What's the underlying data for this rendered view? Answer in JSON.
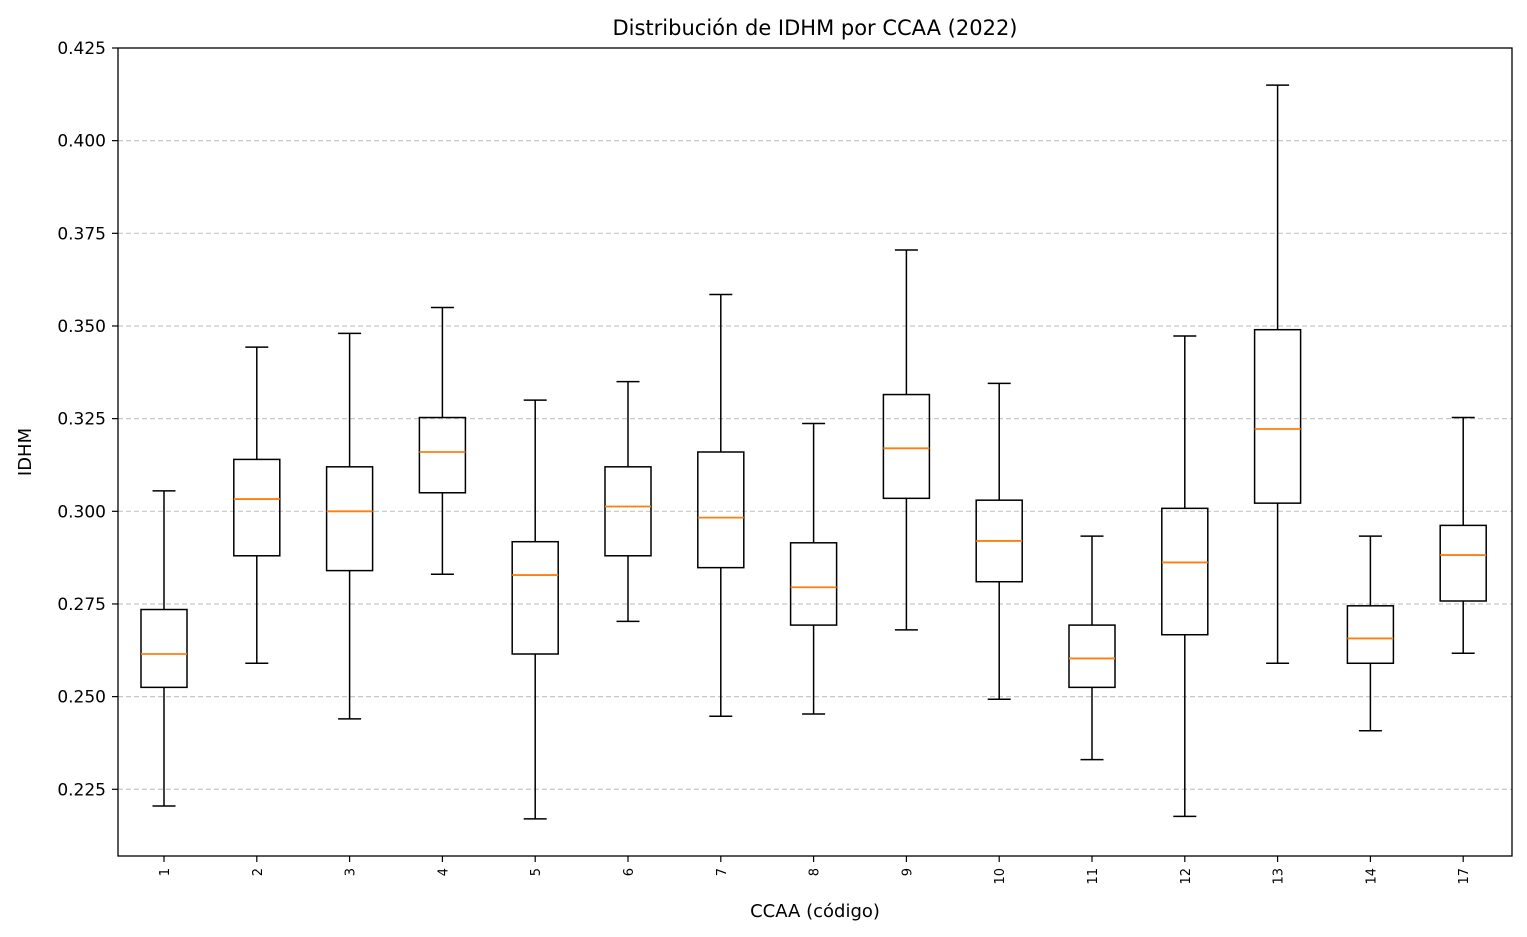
{
  "chart_data": {
    "type": "boxplot",
    "title": "Distribución de IDHM por CCAA (2022)",
    "xlabel": "CCAA (código)",
    "ylabel": "IDHM",
    "ylim": [
      0.207,
      0.425
    ],
    "yticks": [
      "0.225",
      "0.250",
      "0.275",
      "0.300",
      "0.325",
      "0.350",
      "0.375",
      "0.400",
      "0.425"
    ],
    "ytick_values": [
      0.225,
      0.25,
      0.275,
      0.3,
      0.325,
      0.35,
      0.375,
      0.4,
      0.425
    ],
    "grid": "horizontal dashed",
    "colors": {
      "box": "#000000",
      "median": "#ff7f0e",
      "grid": "#c8c8c8"
    },
    "categories": [
      "1",
      "2",
      "3",
      "4",
      "5",
      "6",
      "7",
      "8",
      "9",
      "10",
      "11",
      "12",
      "13",
      "14",
      "17"
    ],
    "boxes": [
      {
        "label": "1",
        "whislo": 0.2205,
        "q1": 0.2525,
        "med": 0.2615,
        "q3": 0.2735,
        "whishi": 0.3055
      },
      {
        "label": "2",
        "whislo": 0.259,
        "q1": 0.288,
        "med": 0.3033,
        "q3": 0.314,
        "whishi": 0.3443
      },
      {
        "label": "3",
        "whislo": 0.244,
        "q1": 0.284,
        "med": 0.3,
        "q3": 0.312,
        "whishi": 0.348
      },
      {
        "label": "4",
        "whislo": 0.283,
        "q1": 0.305,
        "med": 0.316,
        "q3": 0.3253,
        "whishi": 0.355
      },
      {
        "label": "5",
        "whislo": 0.217,
        "q1": 0.2615,
        "med": 0.2828,
        "q3": 0.2918,
        "whishi": 0.33
      },
      {
        "label": "6",
        "whislo": 0.2703,
        "q1": 0.288,
        "med": 0.3013,
        "q3": 0.312,
        "whishi": 0.335
      },
      {
        "label": "7",
        "whislo": 0.2447,
        "q1": 0.2848,
        "med": 0.2983,
        "q3": 0.316,
        "whishi": 0.3585
      },
      {
        "label": "8",
        "whislo": 0.2453,
        "q1": 0.2693,
        "med": 0.2795,
        "q3": 0.2915,
        "whishi": 0.3237
      },
      {
        "label": "9",
        "whislo": 0.268,
        "q1": 0.3035,
        "med": 0.317,
        "q3": 0.3315,
        "whishi": 0.3705
      },
      {
        "label": "10",
        "whislo": 0.2493,
        "q1": 0.281,
        "med": 0.292,
        "q3": 0.303,
        "whishi": 0.3345
      },
      {
        "label": "11",
        "whislo": 0.233,
        "q1": 0.2525,
        "med": 0.2603,
        "q3": 0.2693,
        "whishi": 0.2933
      },
      {
        "label": "12",
        "whislo": 0.2177,
        "q1": 0.2667,
        "med": 0.2862,
        "q3": 0.3008,
        "whishi": 0.3473
      },
      {
        "label": "13",
        "whislo": 0.259,
        "q1": 0.3022,
        "med": 0.3222,
        "q3": 0.349,
        "whishi": 0.415
      },
      {
        "label": "14",
        "whislo": 0.2408,
        "q1": 0.259,
        "med": 0.2657,
        "q3": 0.2745,
        "whishi": 0.2933
      },
      {
        "label": "17",
        "whislo": 0.2617,
        "q1": 0.2758,
        "med": 0.2882,
        "q3": 0.2962,
        "whishi": 0.3253
      }
    ]
  }
}
